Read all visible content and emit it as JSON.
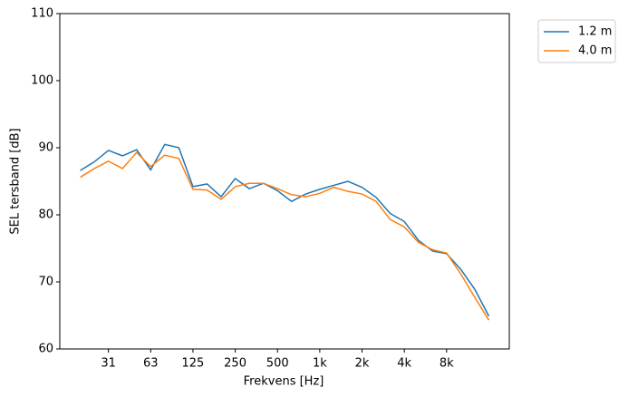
{
  "chart_data": {
    "type": "line",
    "xlabel": "Frekvens [Hz]",
    "ylabel": "SEL tersband [dB]",
    "categories": [
      null,
      null,
      "31",
      null,
      null,
      "63",
      null,
      null,
      "125",
      null,
      null,
      "250",
      null,
      null,
      "500",
      null,
      null,
      "1k",
      null,
      null,
      "2k",
      null,
      null,
      "4k",
      null,
      null,
      "8k",
      null,
      null,
      null
    ],
    "series": [
      {
        "name": "1.2 m",
        "color": "#1f77b4",
        "values": [
          86.6,
          87.9,
          89.6,
          88.8,
          89.7,
          86.7,
          90.5,
          90.0,
          84.2,
          84.6,
          82.7,
          85.4,
          83.9,
          84.7,
          83.6,
          82.0,
          83.1,
          83.8,
          84.4,
          85.0,
          84.1,
          82.6,
          80.2,
          79.0,
          76.2,
          74.6,
          74.2,
          71.9,
          68.9,
          64.9
        ]
      },
      {
        "name": "4.0 m",
        "color": "#ff7f0e",
        "values": [
          85.6,
          86.9,
          88.0,
          86.9,
          89.3,
          87.2,
          88.9,
          88.4,
          83.8,
          83.7,
          82.3,
          84.2,
          84.7,
          84.7,
          83.9,
          83.0,
          82.7,
          83.2,
          84.1,
          83.5,
          83.1,
          82.0,
          79.3,
          78.2,
          75.9,
          74.8,
          74.3,
          71.2,
          67.7,
          64.3
        ]
      }
    ],
    "ylim": [
      60,
      110
    ],
    "yticks": [
      60,
      70,
      80,
      90,
      100,
      110
    ],
    "legend": "outside-upper-right"
  }
}
